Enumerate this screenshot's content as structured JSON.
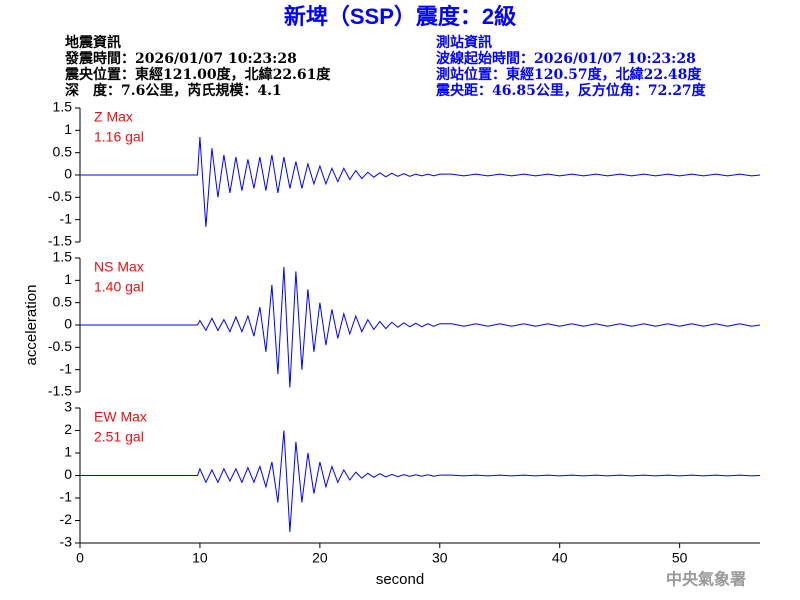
{
  "header": {
    "title": "新埤（SSP）震度：2級",
    "left_heading": "地震資訊",
    "left_lines": [
      "發震時間：2026/01/07 10:23:28",
      "震央位置：東經121.00度，北緯22.61度",
      "深　度：7.6公里，芮氏規模：4.1"
    ],
    "right_heading": "測站資訊",
    "right_lines": [
      "波線起始時間：2026/01/07 10:23:28",
      "測站位置：東經120.57度，北緯22.48度",
      "震央距：46.85公里，反方位角：72.27度"
    ]
  },
  "footer": "中央氣象署",
  "chart_data": [
    {
      "type": "line",
      "color": "#0000ff",
      "max_label": "Z Max",
      "max_value": "1.16 gal",
      "xlim": [
        0,
        56.7
      ],
      "ylim": [
        -1.5,
        1.5
      ],
      "yticks": [
        -1.5,
        -1,
        -0.5,
        0,
        0.5,
        1,
        1.5
      ],
      "x": [
        0,
        9.8,
        10,
        10.5,
        11,
        11.5,
        12,
        12.5,
        13,
        13.5,
        14,
        14.5,
        15,
        15.5,
        16,
        16.5,
        17,
        17.5,
        18,
        18.5,
        19,
        19.5,
        20,
        20.5,
        21,
        21.5,
        22,
        22.5,
        23,
        23.5,
        24,
        24.5,
        25,
        25.5,
        26,
        26.5,
        27,
        27.5,
        28,
        28.5,
        29,
        29.5,
        30,
        31,
        32,
        33,
        34,
        35,
        36,
        37,
        38,
        39,
        40,
        41,
        42,
        43,
        44,
        45,
        46,
        47,
        48,
        49,
        50,
        51,
        52,
        53,
        54,
        55,
        56,
        56.7
      ],
      "values": [
        0,
        0,
        0.85,
        -1.16,
        0.6,
        -0.5,
        0.45,
        -0.4,
        0.4,
        -0.35,
        0.35,
        -0.3,
        0.4,
        -0.35,
        0.45,
        -0.4,
        0.4,
        -0.3,
        0.3,
        -0.3,
        0.25,
        -0.2,
        0.2,
        -0.2,
        0.15,
        -0.15,
        0.15,
        -0.1,
        0.1,
        -0.08,
        0.06,
        -0.05,
        0.05,
        -0.04,
        0.04,
        -0.03,
        0.03,
        -0.03,
        0.02,
        -0.02,
        0.02,
        -0.02,
        0.02,
        0.02,
        -0.02,
        0.02,
        -0.02,
        0.02,
        -0.02,
        0.02,
        -0.02,
        0.02,
        -0.02,
        0.02,
        -0.02,
        0.02,
        -0.02,
        0.02,
        -0.02,
        0.02,
        -0.02,
        0.02,
        -0.02,
        0.02,
        -0.02,
        0.02,
        -0.02,
        0.02,
        -0.02,
        0
      ]
    },
    {
      "type": "line",
      "color": "#0000ff",
      "max_label": "NS Max",
      "max_value": "1.40 gal",
      "y_label": "acceleration",
      "xlim": [
        0,
        56.7
      ],
      "ylim": [
        -1.5,
        1.5
      ],
      "yticks": [
        -1.5,
        -1,
        -0.5,
        0,
        0.5,
        1,
        1.5
      ],
      "x": [
        0,
        9.8,
        10,
        10.5,
        11,
        11.5,
        12,
        12.5,
        13,
        13.5,
        14,
        14.5,
        15,
        15.5,
        16,
        16.5,
        17,
        17.5,
        18,
        18.5,
        19,
        19.5,
        20,
        20.5,
        21,
        21.5,
        22,
        22.5,
        23,
        23.5,
        24,
        24.5,
        25,
        25.5,
        26,
        26.5,
        27,
        27.5,
        28,
        28.5,
        29,
        29.5,
        30,
        31,
        32,
        33,
        34,
        35,
        36,
        37,
        38,
        39,
        40,
        41,
        42,
        43,
        44,
        45,
        46,
        47,
        48,
        49,
        50,
        51,
        52,
        53,
        54,
        55,
        56,
        56.7
      ],
      "values": [
        0,
        0,
        0.1,
        -0.12,
        0.15,
        -0.12,
        0.12,
        -0.15,
        0.18,
        -0.15,
        0.2,
        -0.25,
        0.4,
        -0.6,
        0.9,
        -1.1,
        1.3,
        -1.4,
        1.2,
        -1.0,
        0.8,
        -0.6,
        0.5,
        -0.45,
        0.35,
        -0.3,
        0.25,
        -0.2,
        0.2,
        -0.15,
        0.12,
        -0.1,
        0.08,
        -0.08,
        0.06,
        -0.05,
        0.05,
        -0.04,
        0.04,
        -0.04,
        0.03,
        -0.03,
        0.03,
        0.03,
        -0.03,
        0.03,
        -0.03,
        0.03,
        -0.03,
        0.03,
        -0.03,
        0.03,
        -0.03,
        0.03,
        -0.03,
        0.03,
        -0.03,
        0.03,
        -0.03,
        0.03,
        -0.03,
        0.03,
        -0.03,
        0.03,
        -0.03,
        0.03,
        -0.03,
        0.03,
        -0.03,
        0
      ]
    },
    {
      "type": "line",
      "color": "#0000ff",
      "max_label": "EW Max",
      "max_value": "2.51 gal",
      "x_label": "second",
      "xlim": [
        0,
        56.7
      ],
      "xticks": [
        0,
        10,
        20,
        30,
        40,
        50
      ],
      "ylim": [
        -3,
        3
      ],
      "yticks": [
        -3,
        -2,
        -1,
        0,
        1,
        2,
        3
      ],
      "x": [
        0,
        9.8,
        10,
        10.5,
        11,
        11.5,
        12,
        12.5,
        13,
        13.5,
        14,
        14.5,
        15,
        15.5,
        16,
        16.5,
        17,
        17.5,
        18,
        18.5,
        19,
        19.5,
        20,
        20.5,
        21,
        21.5,
        22,
        22.5,
        23,
        23.5,
        24,
        24.5,
        25,
        25.5,
        26,
        26.5,
        27,
        27.5,
        28,
        28.5,
        29,
        29.5,
        30,
        31,
        32,
        33,
        34,
        35,
        36,
        37,
        38,
        39,
        40,
        41,
        42,
        43,
        44,
        45,
        46,
        47,
        48,
        49,
        50,
        51,
        52,
        53,
        54,
        55,
        56,
        56.7
      ],
      "values": [
        0,
        0,
        0.3,
        -0.3,
        0.25,
        -0.3,
        0.3,
        -0.25,
        0.3,
        -0.3,
        0.35,
        -0.3,
        0.4,
        -0.5,
        0.6,
        -1.2,
        2.0,
        -2.51,
        1.5,
        -1.2,
        1.0,
        -0.8,
        0.6,
        -0.5,
        0.4,
        -0.3,
        0.25,
        -0.2,
        0.15,
        -0.12,
        0.1,
        -0.08,
        0.08,
        -0.06,
        0.05,
        -0.05,
        0.04,
        -0.04,
        0.03,
        -0.03,
        0.03,
        -0.03,
        0.02,
        0.02,
        -0.02,
        0.02,
        -0.02,
        0.02,
        -0.02,
        0.02,
        -0.02,
        0.02,
        -0.02,
        0.02,
        -0.02,
        0.02,
        -0.02,
        0.02,
        -0.02,
        0.02,
        -0.02,
        0.02,
        -0.02,
        0.02,
        -0.02,
        0.02,
        -0.02,
        0.02,
        -0.02,
        0
      ]
    }
  ]
}
